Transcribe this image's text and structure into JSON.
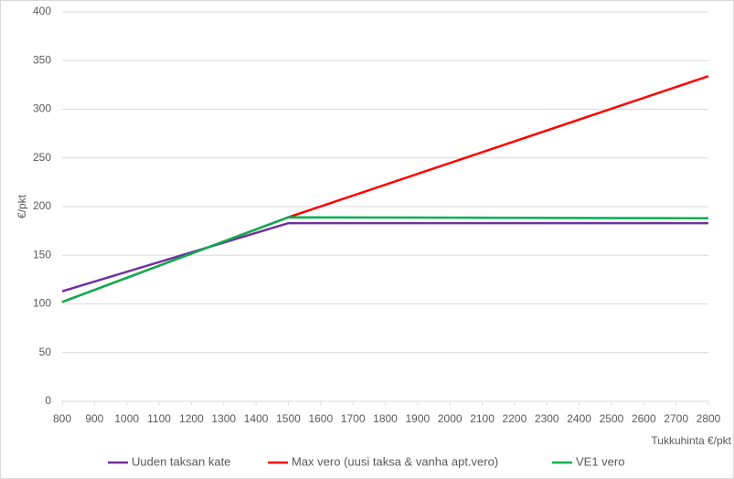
{
  "chart_data": {
    "type": "line",
    "x": [
      800,
      1500,
      2800
    ],
    "series": [
      {
        "name": "Uuden taksan kate",
        "color": "#7030a0",
        "values": [
          113,
          183,
          183
        ]
      },
      {
        "name": "Max vero (uusi taksa & vanha apt.vero)",
        "color": "#ff0000",
        "values": [
          102,
          189,
          334
        ]
      },
      {
        "name": "VE1 vero",
        "color": "#00b050",
        "values": [
          102,
          189,
          188
        ]
      }
    ],
    "xlabel": "Tukkuhinta €/pkt",
    "ylabel": "€/pkt",
    "xlim": [
      800,
      2800
    ],
    "xticks": [
      800,
      900,
      1000,
      1100,
      1200,
      1300,
      1400,
      1500,
      1600,
      1700,
      1800,
      1900,
      2000,
      2100,
      2200,
      2300,
      2400,
      2500,
      2600,
      2700,
      2800
    ],
    "ylim": [
      0,
      400
    ],
    "yticks": [
      0,
      50,
      100,
      150,
      200,
      250,
      300,
      350,
      400
    ],
    "grid": true,
    "legend": "bottom"
  }
}
